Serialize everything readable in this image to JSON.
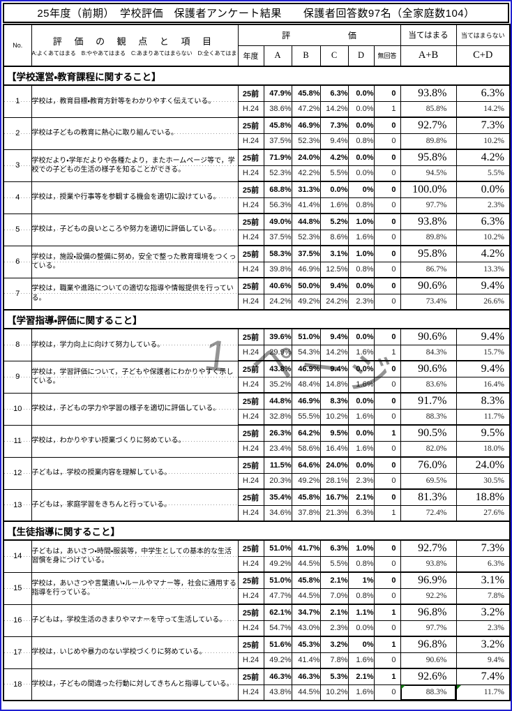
{
  "title": "25年度（前期）　学校評価　保護者アンケート結果　　保護者回答数97名（全家庭数104）",
  "watermark": "1 ページ",
  "header": {
    "no": "No.",
    "viewpoint_title": "評 価 の 観 点 と 項 目",
    "legend": "A:よくあてはまる　B:ややあてはまる　C:あまりあてはまらない　D:全くあてはまらない",
    "evaluation": "評価",
    "agree": "当てはまる",
    "disagree": "当てはまらない",
    "year_label": "年度",
    "col_a": "A",
    "col_b": "B",
    "col_c": "C",
    "col_d": "D",
    "col_na": "無回答",
    "ab_label": "A+B",
    "cd_label": "C+D"
  },
  "sections": [
    {
      "title": "【学校運営・教育課程に関すること】",
      "items": [
        {
          "no": "1",
          "text": "学校は，教育目標・教育方針等をわかりやすく伝えている。",
          "rows": [
            {
              "year": "25前",
              "a": "47.9%",
              "b": "45.8%",
              "c": "6.3%",
              "d": "0.0%",
              "na": "0",
              "ab": "93.8%",
              "cd": "6.3%"
            },
            {
              "year": "H.24",
              "a": "38.6%",
              "b": "47.2%",
              "c": "14.2%",
              "d": "0.0%",
              "na": "1",
              "ab": "85.8%",
              "cd": "14.2%"
            }
          ]
        },
        {
          "no": "2",
          "text": "学校は子どもの教育に熱心に取り組んでいる。",
          "rows": [
            {
              "year": "25前",
              "a": "45.8%",
              "b": "46.9%",
              "c": "7.3%",
              "d": "0.0%",
              "na": "0",
              "ab": "92.7%",
              "cd": "7.3%"
            },
            {
              "year": "H.24",
              "a": "37.5%",
              "b": "52.3%",
              "c": "9.4%",
              "d": "0.8%",
              "na": "0",
              "ab": "89.8%",
              "cd": "10.2%"
            }
          ]
        },
        {
          "no": "3",
          "text": "学校だより・学年だよりや各種たより，またホームページ等で，学校での子どもの生活の様子を知ることができる。",
          "rows": [
            {
              "year": "25前",
              "a": "71.9%",
              "b": "24.0%",
              "c": "4.2%",
              "d": "0.0%",
              "na": "0",
              "ab": "95.8%",
              "cd": "4.2%"
            },
            {
              "year": "H.24",
              "a": "52.3%",
              "b": "42.2%",
              "c": "5.5%",
              "d": "0.0%",
              "na": "0",
              "ab": "94.5%",
              "cd": "5.5%"
            }
          ]
        },
        {
          "no": "4",
          "text": "学校は，授業や行事等を参観する機会を適切に設けている。",
          "rows": [
            {
              "year": "25前",
              "a": "68.8%",
              "b": "31.3%",
              "c": "0.0%",
              "d": "0%",
              "na": "0",
              "ab": "100.0%",
              "cd": "0.0%"
            },
            {
              "year": "H.24",
              "a": "56.3%",
              "b": "41.4%",
              "c": "1.6%",
              "d": "0.8%",
              "na": "0",
              "ab": "97.7%",
              "cd": "2.3%"
            }
          ]
        },
        {
          "no": "5",
          "text": "学校は，子どもの良いところや努力を適切に評価している。",
          "rows": [
            {
              "year": "25前",
              "a": "49.0%",
              "b": "44.8%",
              "c": "5.2%",
              "d": "1.0%",
              "na": "0",
              "ab": "93.8%",
              "cd": "6.3%"
            },
            {
              "year": "H.24",
              "a": "37.5%",
              "b": "52.3%",
              "c": "8.6%",
              "d": "1.6%",
              "na": "0",
              "ab": "89.8%",
              "cd": "10.2%"
            }
          ]
        },
        {
          "no": "6",
          "text": "学校は，施設・設備の整備に努め，安全で整った教育環境をつくっている。",
          "rows": [
            {
              "year": "25前",
              "a": "58.3%",
              "b": "37.5%",
              "c": "3.1%",
              "d": "1.0%",
              "na": "0",
              "ab": "95.8%",
              "cd": "4.2%"
            },
            {
              "year": "H.24",
              "a": "39.8%",
              "b": "46.9%",
              "c": "12.5%",
              "d": "0.8%",
              "na": "0",
              "ab": "86.7%",
              "cd": "13.3%"
            }
          ]
        },
        {
          "no": "7",
          "text": "学校は，職業や進路についての適切な指導や情報提供を行っている。",
          "rows": [
            {
              "year": "25前",
              "a": "40.6%",
              "b": "50.0%",
              "c": "9.4%",
              "d": "0.0%",
              "na": "0",
              "ab": "90.6%",
              "cd": "9.4%"
            },
            {
              "year": "H.24",
              "a": "24.2%",
              "b": "49.2%",
              "c": "24.2%",
              "d": "2.3%",
              "na": "0",
              "ab": "73.4%",
              "cd": "26.6%"
            }
          ]
        }
      ]
    },
    {
      "title": "【学習指導・評価に関すること】",
      "items": [
        {
          "no": "8",
          "text": "学校は，学力向上に向けて努力している。",
          "rows": [
            {
              "year": "25前",
              "a": "39.6%",
              "b": "51.0%",
              "c": "9.4%",
              "d": "0.0%",
              "na": "0",
              "ab": "90.6%",
              "cd": "9.4%"
            },
            {
              "year": "H.24",
              "a": "29.9%",
              "b": "54.3%",
              "c": "14.2%",
              "d": "1.6%",
              "na": "1",
              "ab": "84.3%",
              "cd": "15.7%"
            }
          ]
        },
        {
          "no": "9",
          "text": "学校は，学習評価について，子どもや保護者にわかりやすく示している。",
          "rows": [
            {
              "year": "25前",
              "a": "43.8%",
              "b": "46.9%",
              "c": "9.4%",
              "d": "0.0%",
              "na": "0",
              "ab": "90.6%",
              "cd": "9.4%"
            },
            {
              "year": "H.24",
              "a": "35.2%",
              "b": "48.4%",
              "c": "14.8%",
              "d": "1.6%",
              "na": "0",
              "ab": "83.6%",
              "cd": "16.4%"
            }
          ]
        },
        {
          "no": "10",
          "text": "学校は，子どもの学力や学習の様子を適切に評価している。",
          "rows": [
            {
              "year": "25前",
              "a": "44.8%",
              "b": "46.9%",
              "c": "8.3%",
              "d": "0.0%",
              "na": "0",
              "ab": "91.7%",
              "cd": "8.3%"
            },
            {
              "year": "H.24",
              "a": "32.8%",
              "b": "55.5%",
              "c": "10.2%",
              "d": "1.6%",
              "na": "0",
              "ab": "88.3%",
              "cd": "11.7%"
            }
          ]
        },
        {
          "no": "11",
          "text": "学校は，わかりやすい授業づくりに努めている。",
          "rows": [
            {
              "year": "25前",
              "a": "26.3%",
              "b": "64.2%",
              "c": "9.5%",
              "d": "0.0%",
              "na": "1",
              "ab": "90.5%",
              "cd": "9.5%"
            },
            {
              "year": "H.24",
              "a": "23.4%",
              "b": "58.6%",
              "c": "16.4%",
              "d": "1.6%",
              "na": "0",
              "ab": "82.0%",
              "cd": "18.0%"
            }
          ]
        },
        {
          "no": "12",
          "text": "子どもは，学校の授業内容を理解している。",
          "rows": [
            {
              "year": "25前",
              "a": "11.5%",
              "b": "64.6%",
              "c": "24.0%",
              "d": "0.0%",
              "na": "0",
              "ab": "76.0%",
              "cd": "24.0%"
            },
            {
              "year": "H.24",
              "a": "20.3%",
              "b": "49.2%",
              "c": "28.1%",
              "d": "2.3%",
              "na": "0",
              "ab": "69.5%",
              "cd": "30.5%"
            }
          ]
        },
        {
          "no": "13",
          "text": "子どもは，家庭学習をきちんと行っている。",
          "rows": [
            {
              "year": "25前",
              "a": "35.4%",
              "b": "45.8%",
              "c": "16.7%",
              "d": "2.1%",
              "na": "0",
              "ab": "81.3%",
              "cd": "18.8%"
            },
            {
              "year": "H.24",
              "a": "34.6%",
              "b": "37.8%",
              "c": "21.3%",
              "d": "6.3%",
              "na": "1",
              "ab": "72.4%",
              "cd": "27.6%"
            }
          ]
        }
      ]
    },
    {
      "title": "【生徒指導に関すること】",
      "items": [
        {
          "no": "14",
          "text": "子どもは，あいさつ・時間・服装等，中学生としての基本的な生活習慣を身につけている。",
          "rows": [
            {
              "year": "25前",
              "a": "51.0%",
              "b": "41.7%",
              "c": "6.3%",
              "d": "1.0%",
              "na": "0",
              "ab": "92.7%",
              "cd": "7.3%"
            },
            {
              "year": "H.24",
              "a": "49.2%",
              "b": "44.5%",
              "c": "5.5%",
              "d": "0.8%",
              "na": "0",
              "ab": "93.8%",
              "cd": "6.3%"
            }
          ]
        },
        {
          "no": "15",
          "text": "学校は，あいさつや言葉遣い・ルールやマナー等，社会に通用する指導を行っている。",
          "rows": [
            {
              "year": "25前",
              "a": "51.0%",
              "b": "45.8%",
              "c": "2.1%",
              "d": "1%",
              "na": "0",
              "ab": "96.9%",
              "cd": "3.1%"
            },
            {
              "year": "H.24",
              "a": "47.7%",
              "b": "44.5%",
              "c": "7.0%",
              "d": "0.8%",
              "na": "0",
              "ab": "92.2%",
              "cd": "7.8%"
            }
          ]
        },
        {
          "no": "16",
          "text": "子どもは，学校生活のきまりやマナーを守って生活している。",
          "rows": [
            {
              "year": "25前",
              "a": "62.1%",
              "b": "34.7%",
              "c": "2.1%",
              "d": "1.1%",
              "na": "1",
              "ab": "96.8%",
              "cd": "3.2%"
            },
            {
              "year": "H.24",
              "a": "54.7%",
              "b": "43.0%",
              "c": "2.3%",
              "d": "0.0%",
              "na": "0",
              "ab": "97.7%",
              "cd": "2.3%"
            }
          ]
        },
        {
          "no": "17",
          "text": "学校は，いじめや暴力のない学校づくりに努めている。",
          "rows": [
            {
              "year": "25前",
              "a": "51.6%",
              "b": "45.3%",
              "c": "3.2%",
              "d": "0%",
              "na": "1",
              "ab": "96.8%",
              "cd": "3.2%"
            },
            {
              "year": "H.24",
              "a": "49.2%",
              "b": "41.4%",
              "c": "7.8%",
              "d": "1.6%",
              "na": "0",
              "ab": "90.6%",
              "cd": "9.4%"
            }
          ]
        },
        {
          "no": "18",
          "text": "学校は，子どもの間違った行動に対してきちんと指導している。",
          "rows": [
            {
              "year": "25前",
              "a": "46.3%",
              "b": "46.3%",
              "c": "5.3%",
              "d": "2.1%",
              "na": "1",
              "ab": "92.6%",
              "cd": "7.4%"
            },
            {
              "year": "H.24",
              "a": "43.8%",
              "b": "44.5%",
              "c": "10.2%",
              "d": "1.6%",
              "na": "0",
              "ab": "88.3%",
              "cd": "11.7%",
              "marks": [
                "ab",
                "cd"
              ],
              "selected": "ab"
            }
          ]
        }
      ]
    }
  ]
}
